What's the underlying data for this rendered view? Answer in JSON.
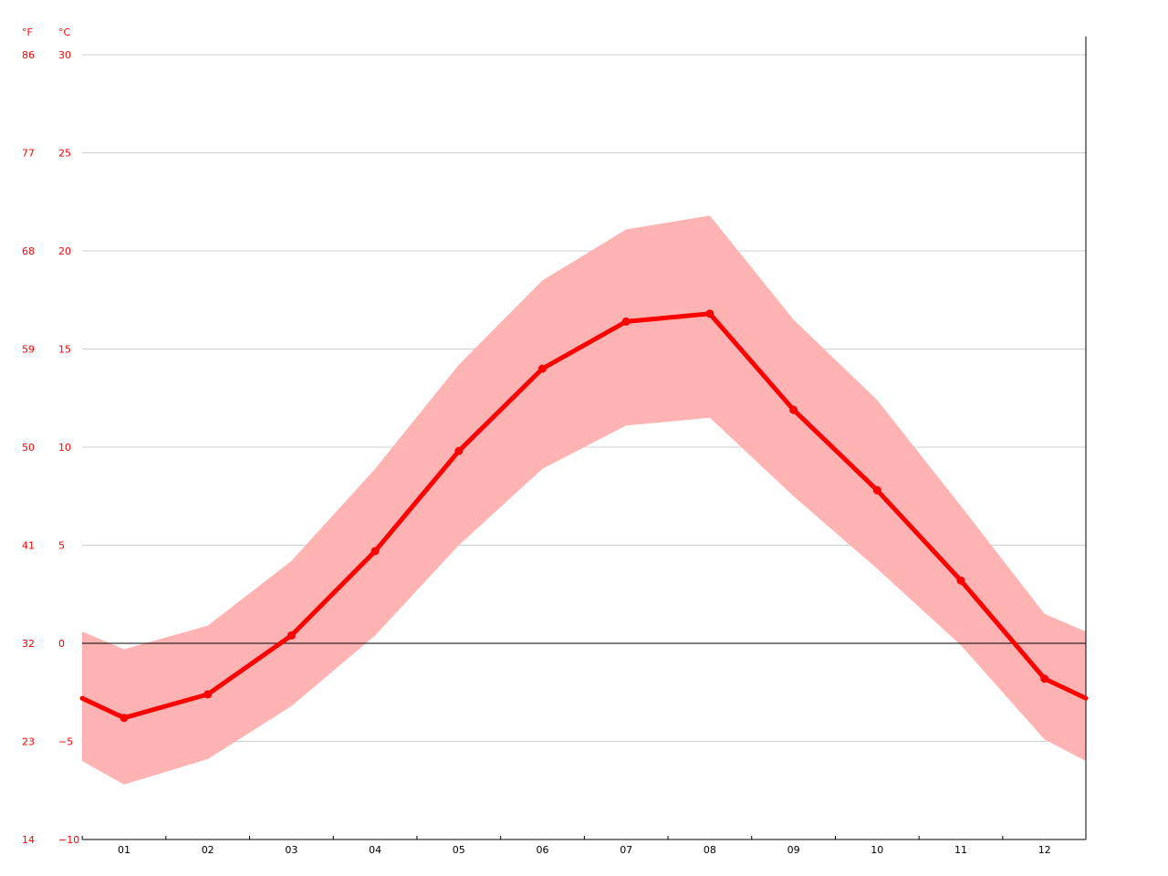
{
  "chart_data": {
    "type": "area",
    "categories": [
      "01",
      "02",
      "03",
      "04",
      "05",
      "06",
      "07",
      "08",
      "09",
      "10",
      "11",
      "12"
    ],
    "series": [
      {
        "values": [
          -3.8,
          -2.6,
          0.4,
          4.7,
          9.8,
          14.0,
          16.4,
          16.8,
          11.9,
          7.8,
          3.2,
          -1.8
        ]
      }
    ],
    "band": {
      "low": [
        -7.2,
        -5.9,
        -3.2,
        0.4,
        5.0,
        8.9,
        11.1,
        11.5,
        7.5,
        3.8,
        -0.1,
        -4.9
      ],
      "high": [
        -0.3,
        0.9,
        4.2,
        8.9,
        14.2,
        18.5,
        21.1,
        21.8,
        16.5,
        12.4,
        7.0,
        1.5
      ]
    },
    "edge_values": {
      "start": {
        "mid": -2.8,
        "low": -6.0,
        "high": 0.6
      },
      "end": {
        "mid": -2.8,
        "low": -6.0,
        "high": 0.6
      }
    },
    "y_axis_labels": {
      "fahrenheit": "°F",
      "celsius": "°C"
    },
    "y_ticks_c": [
      30,
      25,
      20,
      15,
      10,
      5,
      0,
      -5,
      -10
    ],
    "y_ticks_f": [
      "86",
      "77",
      "68",
      "59",
      "50",
      "41",
      "32",
      "23",
      "14"
    ],
    "ylim": [
      -10,
      30
    ],
    "grid": true,
    "colors": {
      "line": "#ff0000",
      "band": "#ffb3b3",
      "tick_text": "#ff0000",
      "grid": "#cfcfcf"
    }
  }
}
